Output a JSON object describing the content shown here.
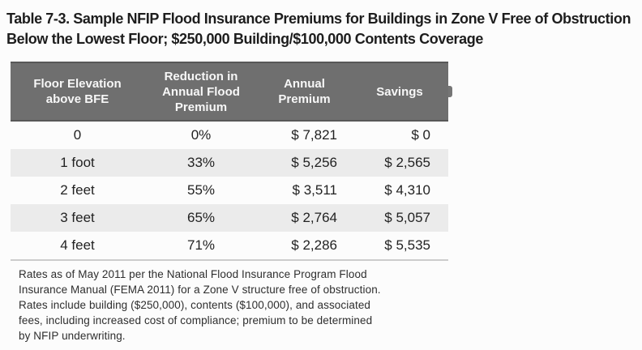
{
  "title": {
    "line1": "Table 7-3. Sample NFIP Flood Insurance Premiums for Buildings in Zone V Free of Obstruction",
    "line2": "Below the Lowest Floor; $250,000 Building/$100,000 Contents Coverage"
  },
  "table": {
    "headers": [
      {
        "lines": [
          "Floor Elevation",
          "above BFE"
        ]
      },
      {
        "lines": [
          "Reduction in",
          "Annual Flood",
          "Premium"
        ]
      },
      {
        "lines": [
          "Annual",
          "Premium"
        ]
      },
      {
        "lines": [
          "Savings"
        ]
      }
    ],
    "rows": [
      {
        "elevation": "0",
        "reduction": "0%",
        "premium": "$ 7,821",
        "savings": "$ 0"
      },
      {
        "elevation": "1 foot",
        "reduction": "33%",
        "premium": "$ 5,256",
        "savings": "$ 2,565"
      },
      {
        "elevation": "2 feet",
        "reduction": "55%",
        "premium": "$ 3,511",
        "savings": "$ 4,310"
      },
      {
        "elevation": "3 feet",
        "reduction": "65%",
        "premium": "$ 2,764",
        "savings": "$ 5,057"
      },
      {
        "elevation": "4 feet",
        "reduction": "71%",
        "premium": "$ 2,286",
        "savings": "$ 5,535"
      }
    ]
  },
  "footnote": {
    "lines": [
      "Rates as of May 2011 per the National Flood Insurance Program Flood",
      "Insurance Manual (FEMA 2011) for a Zone V structure free of obstruction.",
      "Rates include building ($250,000), contents ($100,000), and associated",
      "fees, including increased cost of compliance; premium to be determined",
      "by NFIP underwriting."
    ]
  },
  "colors": {
    "header_bg": "#6f6f6f",
    "header_text": "#f7f7f7",
    "stripe": "#ebebeb",
    "body_text": "#222222",
    "rule": "#cccccc"
  }
}
